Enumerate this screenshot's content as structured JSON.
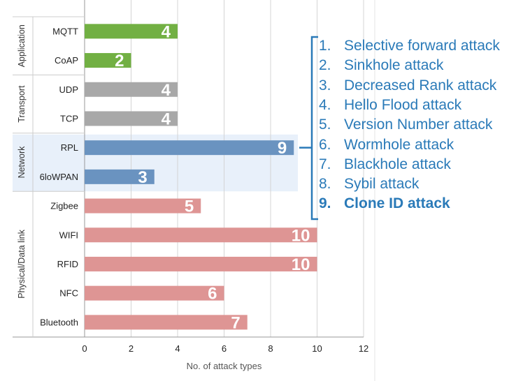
{
  "chart_data": {
    "type": "bar",
    "orientation": "horizontal",
    "xlabel": "No. of attack types",
    "xlim": [
      0,
      12
    ],
    "xticks": [
      0,
      2,
      4,
      6,
      8,
      10,
      12
    ],
    "grid": true,
    "categories": [
      "MQTT",
      "CoAP",
      "UDP",
      "TCP",
      "RPL",
      "6loWPAN",
      "Zigbee",
      "WIFI",
      "RFID",
      "NFC",
      "Bluetooth"
    ],
    "values": [
      4,
      2,
      4,
      4,
      9,
      3,
      5,
      10,
      10,
      6,
      7
    ],
    "groups": [
      {
        "label": "Application",
        "categories": [
          "MQTT",
          "CoAP"
        ],
        "color": "#72b043"
      },
      {
        "label": "Transport",
        "categories": [
          "UDP",
          "TCP"
        ],
        "color": "#a8a8a8"
      },
      {
        "label": "Network",
        "categories": [
          "RPL",
          "6loWPAN"
        ],
        "color": "#6a93c0",
        "highlight": "#e8f0fa"
      },
      {
        "label": "Physical/Data link",
        "categories": [
          "Zigbee",
          "WIFI",
          "RFID",
          "NFC",
          "Bluetooth"
        ],
        "color": "#de9594"
      }
    ],
    "annotation": {
      "points_to": "RPL",
      "items": [
        {
          "num": "1.",
          "text": "Selective forward attack",
          "bold": false
        },
        {
          "num": "2.",
          "text": "Sinkhole attack",
          "bold": false
        },
        {
          "num": "3.",
          "text": "Decreased Rank attack",
          "bold": false
        },
        {
          "num": "4.",
          "text": "Hello Flood attack",
          "bold": false
        },
        {
          "num": "5.",
          "text": "Version Number attack",
          "bold": false
        },
        {
          "num": "6.",
          "text": "Wormhole attack",
          "bold": false
        },
        {
          "num": "7.",
          "text": "Blackhole attack",
          "bold": false
        },
        {
          "num": "8.",
          "text": "Sybil attack",
          "bold": false
        },
        {
          "num": "9.",
          "text": "Clone ID attack",
          "bold": true
        }
      ],
      "color": "#2a7ab8"
    }
  }
}
